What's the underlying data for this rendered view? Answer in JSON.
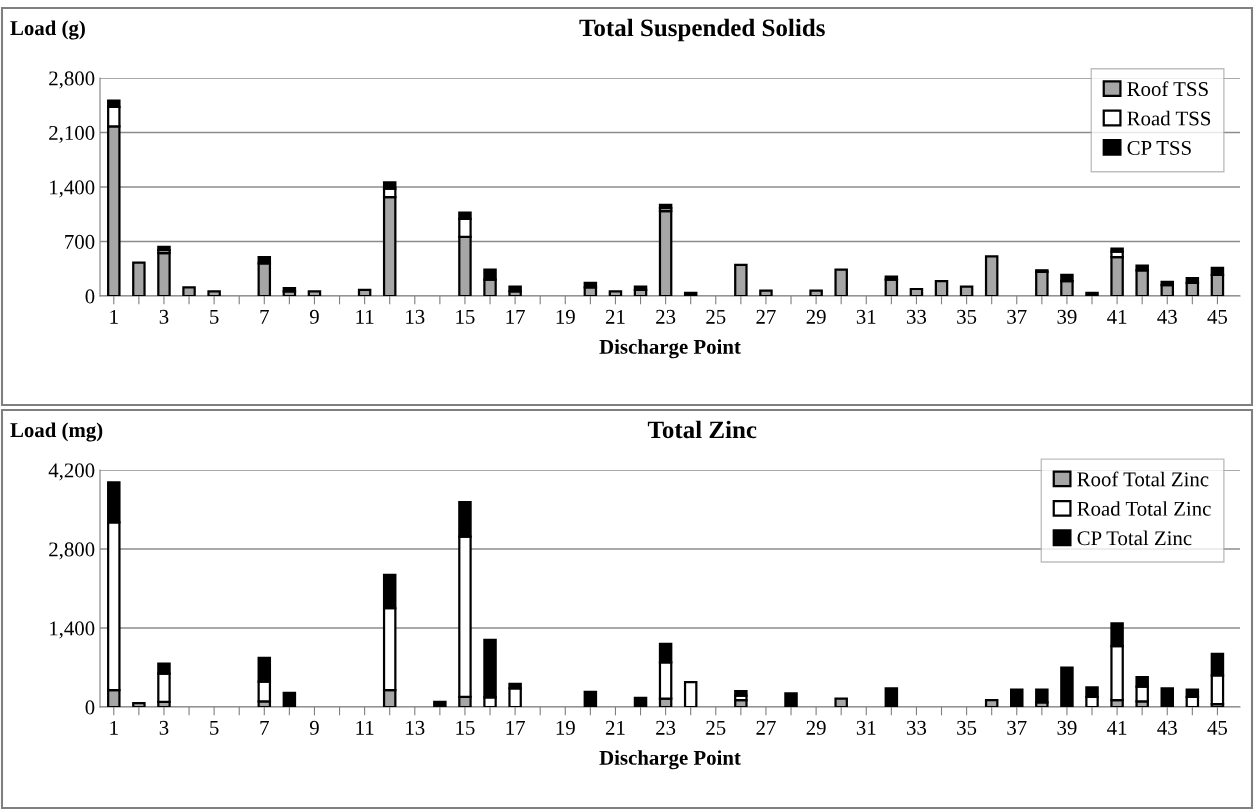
{
  "chart_data": [
    {
      "type": "bar",
      "stacked": true,
      "title": "Total Suspended Solids",
      "ylabel": "Load (g)",
      "xlabel": "Discharge Point",
      "categories": [
        "1",
        null,
        "3",
        null,
        "5",
        null,
        "7",
        null,
        "9",
        null,
        "11",
        null,
        "13",
        null,
        "15",
        null,
        "17",
        null,
        "19",
        null,
        "21",
        null,
        "23",
        null,
        "25",
        null,
        "27",
        null,
        "29",
        null,
        "31",
        null,
        "33",
        null,
        "35",
        null,
        "37",
        null,
        "39",
        null,
        "41",
        null,
        "43",
        null,
        "45"
      ],
      "series": [
        {
          "name": "Roof TSS",
          "color": "#a6a6a6",
          "values": [
            2180,
            430,
            550,
            110,
            60,
            0,
            420,
            60,
            60,
            0,
            80,
            1270,
            0,
            0,
            760,
            210,
            60,
            0,
            0,
            110,
            60,
            80,
            1090,
            null,
            0,
            400,
            70,
            0,
            70,
            340,
            0,
            210,
            90,
            190,
            120,
            510,
            0,
            310,
            190,
            null,
            500,
            330,
            140,
            170,
            270
          ]
        },
        {
          "name": "Road TSS",
          "color": "#ffffff",
          "values": [
            250,
            0,
            40,
            0,
            0,
            0,
            0,
            0,
            0,
            0,
            0,
            110,
            0,
            0,
            230,
            0,
            0,
            0,
            0,
            0,
            0,
            0,
            40,
            0,
            0,
            0,
            0,
            0,
            0,
            0,
            0,
            0,
            0,
            0,
            0,
            0,
            0,
            0,
            0,
            0,
            70,
            0,
            0,
            0,
            0
          ]
        },
        {
          "name": "CP TSS",
          "color": "#000000",
          "values": [
            80,
            0,
            40,
            0,
            0,
            0,
            80,
            40,
            0,
            0,
            0,
            80,
            0,
            0,
            80,
            130,
            60,
            0,
            0,
            60,
            0,
            40,
            40,
            40,
            0,
            0,
            0,
            0,
            0,
            0,
            0,
            40,
            0,
            0,
            0,
            0,
            0,
            20,
            80,
            40,
            40,
            60,
            40,
            60,
            90
          ]
        }
      ],
      "ylim": [
        0,
        2800
      ],
      "yticks": [
        {
          "value": 0,
          "label": "0"
        },
        {
          "value": 700,
          "label": "700"
        },
        {
          "value": 1400,
          "label": "1,400"
        },
        {
          "value": 2100,
          "label": "2,100"
        },
        {
          "value": 2800,
          "label": "2,800"
        }
      ],
      "grid": "y",
      "legend": "top right"
    },
    {
      "type": "bar",
      "stacked": true,
      "title": "Total Zinc",
      "ylabel": "Load (mg)",
      "xlabel": "Discharge Point",
      "categories": [
        "1",
        null,
        "3",
        null,
        "5",
        null,
        "7",
        null,
        "9",
        null,
        "11",
        null,
        "13",
        null,
        "15",
        null,
        "17",
        null,
        "19",
        null,
        "21",
        null,
        "23",
        null,
        "25",
        null,
        "27",
        null,
        "29",
        null,
        "31",
        null,
        "33",
        null,
        "35",
        null,
        "37",
        null,
        "39",
        null,
        "41",
        null,
        "43",
        null,
        "45"
      ],
      "series": [
        {
          "name": "Roof Total Zinc",
          "color": "#a6a6a6",
          "values": [
            300,
            70,
            90,
            0,
            0,
            0,
            100,
            0,
            0,
            0,
            0,
            300,
            0,
            0,
            180,
            0,
            0,
            0,
            0,
            null,
            0,
            0,
            150,
            0,
            0,
            120,
            0,
            0,
            0,
            150,
            0,
            0,
            0,
            0,
            0,
            120,
            0,
            80,
            0,
            0,
            120,
            100,
            0,
            0,
            50
          ]
        },
        {
          "name": "Road Total Zinc",
          "color": "#ffffff",
          "values": [
            2970,
            0,
            500,
            0,
            0,
            0,
            350,
            0,
            0,
            0,
            0,
            1450,
            0,
            0,
            2840,
            170,
            330,
            0,
            0,
            0,
            0,
            0,
            640,
            440,
            0,
            80,
            0,
            0,
            0,
            0,
            0,
            0,
            0,
            0,
            0,
            0,
            0,
            0,
            0,
            180,
            960,
            260,
            0,
            180,
            510
          ]
        },
        {
          "name": "CP Total Zinc",
          "color": "#000000",
          "values": [
            710,
            0,
            180,
            0,
            0,
            0,
            420,
            250,
            0,
            0,
            0,
            590,
            0,
            90,
            610,
            1020,
            80,
            0,
            0,
            270,
            0,
            160,
            330,
            0,
            0,
            80,
            0,
            240,
            0,
            0,
            0,
            330,
            0,
            0,
            0,
            0,
            310,
            230,
            700,
            170,
            400,
            170,
            330,
            130,
            380
          ]
        }
      ],
      "ylim": [
        0,
        4200
      ],
      "yticks": [
        {
          "value": 0,
          "label": "0"
        },
        {
          "value": 1400,
          "label": "1,400"
        },
        {
          "value": 2800,
          "label": "2,800"
        },
        {
          "value": 4200,
          "label": "4,200"
        }
      ],
      "grid": "y",
      "legend": "top right"
    }
  ]
}
